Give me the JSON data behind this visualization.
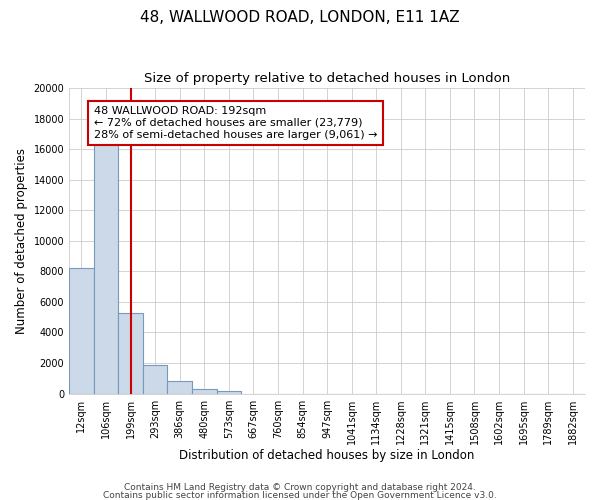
{
  "title": "48, WALLWOOD ROAD, LONDON, E11 1AZ",
  "subtitle": "Size of property relative to detached houses in London",
  "xlabel": "Distribution of detached houses by size in London",
  "ylabel": "Number of detached properties",
  "categories": [
    "12sqm",
    "106sqm",
    "199sqm",
    "293sqm",
    "386sqm",
    "480sqm",
    "573sqm",
    "667sqm",
    "760sqm",
    "854sqm",
    "947sqm",
    "1041sqm",
    "1134sqm",
    "1228sqm",
    "1321sqm",
    "1415sqm",
    "1508sqm",
    "1602sqm",
    "1695sqm",
    "1789sqm",
    "1882sqm"
  ],
  "values": [
    8200,
    16600,
    5300,
    1850,
    800,
    300,
    200,
    0,
    0,
    0,
    0,
    0,
    0,
    0,
    0,
    0,
    0,
    0,
    0,
    0,
    0
  ],
  "bar_color": "#ccd9e8",
  "bar_edge_color": "#7799bb",
  "property_line_x": 2,
  "property_line_color": "#cc0000",
  "annotation_text": "48 WALLWOOD ROAD: 192sqm\n← 72% of detached houses are smaller (23,779)\n28% of semi-detached houses are larger (9,061) →",
  "annotation_box_color": "#ffffff",
  "annotation_box_edge_color": "#cc0000",
  "ylim": [
    0,
    20000
  ],
  "yticks": [
    0,
    2000,
    4000,
    6000,
    8000,
    10000,
    12000,
    14000,
    16000,
    18000,
    20000
  ],
  "footer_line1": "Contains HM Land Registry data © Crown copyright and database right 2024.",
  "footer_line2": "Contains public sector information licensed under the Open Government Licence v3.0.",
  "background_color": "#ffffff",
  "plot_bg_color": "#ffffff",
  "grid_color": "#cccccc",
  "title_fontsize": 11,
  "subtitle_fontsize": 9.5,
  "axis_label_fontsize": 8.5,
  "tick_fontsize": 7,
  "footer_fontsize": 6.5
}
